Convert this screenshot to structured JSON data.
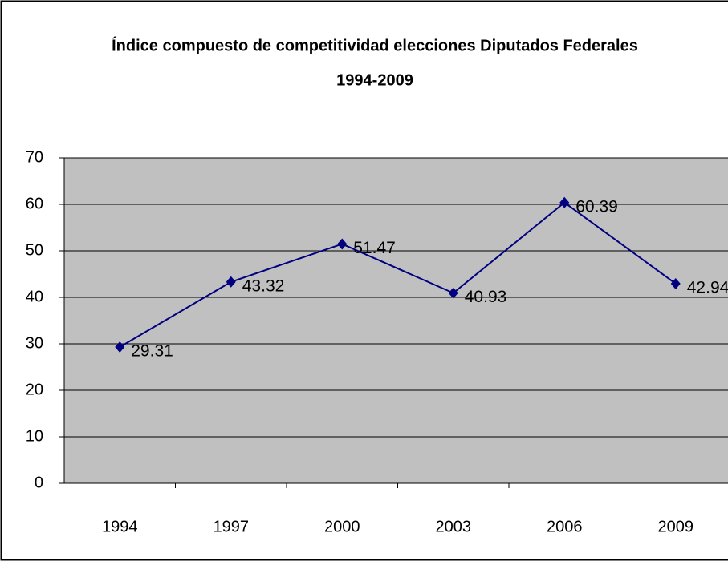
{
  "chart_data": {
    "type": "line",
    "title": [
      "Índice compuesto de competitividad elecciones Diputados Federales",
      "1994-2009"
    ],
    "categories": [
      "1994",
      "1997",
      "2000",
      "2003",
      "2006",
      "2009"
    ],
    "series": [
      {
        "color": "#000080",
        "values": [
          29.31,
          43.32,
          51.47,
          40.93,
          60.39,
          42.94
        ]
      }
    ],
    "ylim": [
      0,
      70
    ],
    "yticks": [
      0,
      10,
      20,
      30,
      40,
      50,
      60,
      70
    ],
    "grid": true,
    "plot_background": "#c0c0c0",
    "data_labels": true,
    "marker": "diamond"
  }
}
